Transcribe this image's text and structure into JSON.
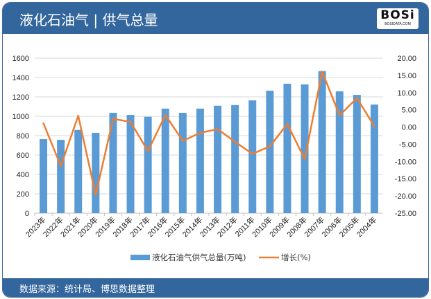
{
  "header": {
    "title": "液化石油气 | 供气总量",
    "logo_text": "BOSi",
    "logo_sub": "BOSIDATA.COM"
  },
  "footer": {
    "source": "数据来源：统计局、博思数据整理"
  },
  "chart_data": {
    "type": "bar+line",
    "categories": [
      "2023年",
      "2022年",
      "2021年",
      "2020年",
      "2019年",
      "2018年",
      "2017年",
      "2016年",
      "2015年",
      "2014年",
      "2013年",
      "2012年",
      "2011年",
      "2010年",
      "2009年",
      "2008年",
      "2007年",
      "2006年",
      "2005年",
      "2004年"
    ],
    "series": [
      {
        "name": "液化石油气供气总量(万吨)",
        "type": "bar",
        "axis": "left",
        "color": "#5b9bd5",
        "values": [
          764,
          757,
          859,
          829,
          1036,
          1014,
          995,
          1079,
          1036,
          1079,
          1109,
          1116,
          1164,
          1264,
          1336,
          1329,
          1466,
          1257,
          1221,
          1121
        ]
      },
      {
        "name": "增长(%)",
        "type": "line",
        "axis": "right",
        "color": "#ed7d31",
        "values": [
          1.1,
          -11.3,
          3.3,
          -19.7,
          2.4,
          1.5,
          -7.0,
          3.5,
          -4.0,
          -1.7,
          -0.6,
          -4.3,
          -7.8,
          -5.6,
          0.9,
          -9.3,
          16.1,
          3.4,
          8.4,
          0.2
        ]
      }
    ],
    "y_left": {
      "min": 0,
      "max": 1600,
      "ticks": [
        "0",
        "200",
        "400",
        "600",
        "800",
        "1000",
        "1200",
        "1400",
        "1600"
      ]
    },
    "y_right": {
      "min": -25,
      "max": 20,
      "ticks": [
        "-25.00",
        "-20.00",
        "-15.00",
        "-10.00",
        "-5.00",
        "0.00",
        "5.00",
        "10.00",
        "15.00",
        "20.00"
      ]
    },
    "grid": true,
    "legend": "bottom"
  }
}
